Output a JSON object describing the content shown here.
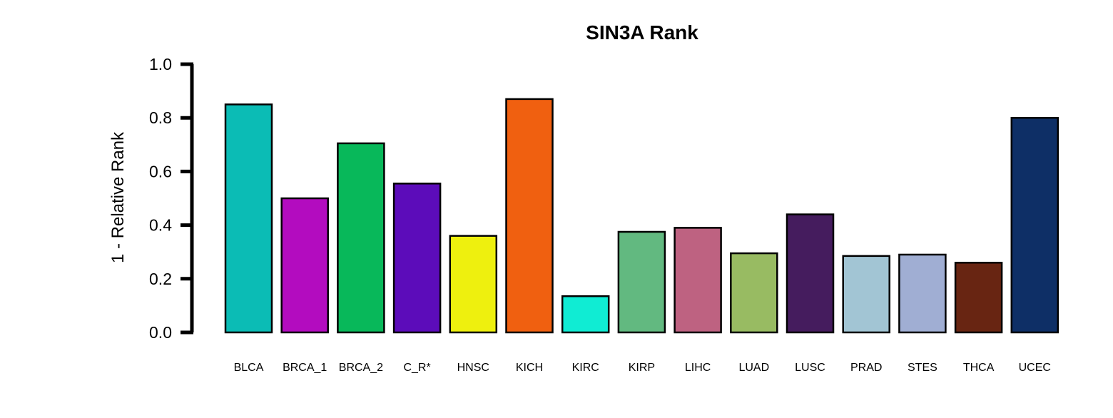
{
  "chart_data": {
    "type": "bar",
    "title": "SIN3A Rank",
    "xlabel": "",
    "ylabel": "1 - Relative Rank",
    "ylim": [
      0,
      1
    ],
    "yticks": [
      "0.0",
      "0.2",
      "0.4",
      "0.6",
      "0.8",
      "1.0"
    ],
    "grid": false,
    "categories": [
      "BLCA",
      "BRCA_1",
      "BRCA_2",
      "C_R*",
      "HNSC",
      "KICH",
      "KIRC",
      "KIRP",
      "LIHC",
      "LUAD",
      "LUSC",
      "PRAD",
      "STES",
      "THCA",
      "UCEC"
    ],
    "values": [
      0.85,
      0.5,
      0.705,
      0.555,
      0.36,
      0.87,
      0.135,
      0.375,
      0.39,
      0.295,
      0.44,
      0.285,
      0.29,
      0.26,
      0.8
    ],
    "colors": [
      "#0bbcb5",
      "#b30cbf",
      "#08b85a",
      "#5c0cba",
      "#eef00e",
      "#f06010",
      "#10ecd3",
      "#62b980",
      "#be6281",
      "#98bb62",
      "#451c5e",
      "#a2c5d4",
      "#a0aed3",
      "#682512",
      "#0e2f66"
    ]
  }
}
